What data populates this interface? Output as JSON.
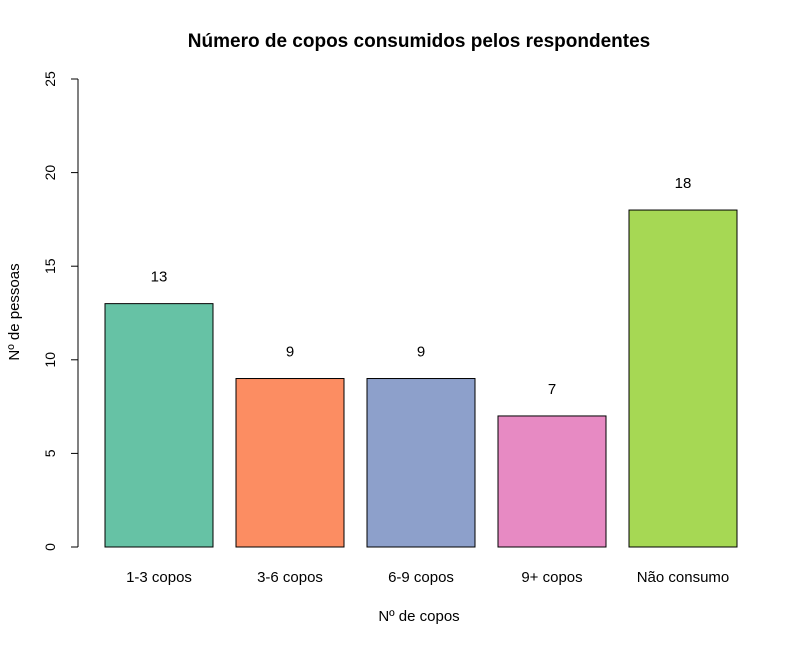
{
  "chart_data": {
    "type": "bar",
    "title": "Número de copos consumidos pelos respondentes",
    "xlabel": "Nº de copos",
    "ylabel": "Nº de pessoas",
    "categories": [
      "1-3 copos",
      "3-6 copos",
      "6-9 copos",
      "9+ copos",
      "Não consumo"
    ],
    "values": [
      13,
      9,
      9,
      7,
      18
    ],
    "data_labels": [
      "13",
      "9",
      "9",
      "7",
      "18"
    ],
    "colors": [
      "#66c2a5",
      "#fc8d62",
      "#8da0cb",
      "#e78ac3",
      "#a6d854"
    ],
    "ylim": [
      0,
      25
    ],
    "yticks": [
      0,
      5,
      10,
      15,
      20,
      25
    ],
    "ytick_labels": [
      "0",
      "5",
      "10",
      "15",
      "20",
      "25"
    ],
    "grid": false,
    "legend": "none"
  }
}
